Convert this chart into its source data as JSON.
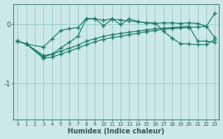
{
  "xlabel": "Humidex (Indice chaleur)",
  "xlim": [
    -0.5,
    23.5
  ],
  "ylim": [
    -1.6,
    0.35
  ],
  "yticks": [
    -1,
    0
  ],
  "xticks": [
    0,
    1,
    2,
    3,
    4,
    5,
    6,
    7,
    8,
    9,
    10,
    11,
    12,
    13,
    14,
    15,
    16,
    17,
    18,
    19,
    20,
    21,
    22,
    23
  ],
  "background_color": "#cce8e8",
  "grid_color": "#99cccc",
  "line_color": "#1a7a6a",
  "line1_x": [
    0,
    1,
    3,
    4,
    5,
    6,
    7,
    8,
    9,
    10,
    11,
    12,
    13,
    14,
    15,
    16,
    17,
    18,
    19,
    20,
    21,
    22,
    23
  ],
  "line1_y": [
    -0.28,
    -0.33,
    -0.38,
    -0.24,
    -0.1,
    -0.07,
    -0.05,
    0.1,
    0.1,
    0.07,
    0.1,
    0.0,
    0.1,
    0.05,
    0.03,
    0.02,
    0.03,
    0.03,
    0.02,
    0.03,
    0.02,
    -0.03,
    0.19
  ],
  "line2_x": [
    0,
    1,
    3,
    4,
    5,
    6,
    7,
    8,
    9,
    10,
    11,
    12,
    13,
    14,
    15,
    16,
    17,
    18,
    19,
    20,
    21,
    22,
    23
  ],
  "line2_y": [
    -0.28,
    -0.33,
    -0.55,
    -0.5,
    -0.4,
    -0.3,
    -0.2,
    0.1,
    0.1,
    -0.02,
    0.09,
    0.08,
    0.06,
    0.05,
    0.03,
    0.03,
    -0.11,
    -0.23,
    -0.32,
    -0.33,
    -0.34,
    -0.34,
    -0.25
  ],
  "line3_x": [
    0,
    1,
    3,
    4,
    5,
    6,
    7,
    8,
    9,
    10,
    11,
    12,
    13,
    14,
    15,
    16,
    17,
    18,
    19,
    20,
    21,
    22,
    23
  ],
  "line3_y": [
    -0.28,
    -0.33,
    -0.52,
    -0.5,
    -0.45,
    -0.4,
    -0.35,
    -0.28,
    -0.24,
    -0.2,
    -0.17,
    -0.15,
    -0.13,
    -0.11,
    -0.09,
    -0.07,
    -0.06,
    -0.05,
    -0.04,
    -0.03,
    -0.28,
    -0.28,
    -0.3
  ],
  "line4_x": [
    0,
    1,
    3,
    4,
    5,
    6,
    7,
    8,
    9,
    10,
    11,
    12,
    13,
    14,
    15,
    16,
    17,
    18,
    19,
    20,
    21,
    22,
    23
  ],
  "line4_y": [
    -0.28,
    -0.33,
    -0.57,
    -0.55,
    -0.5,
    -0.45,
    -0.4,
    -0.34,
    -0.29,
    -0.25,
    -0.22,
    -0.2,
    -0.17,
    -0.15,
    -0.12,
    -0.1,
    -0.08,
    -0.07,
    -0.06,
    -0.05,
    -0.04,
    -0.03,
    -0.22
  ]
}
